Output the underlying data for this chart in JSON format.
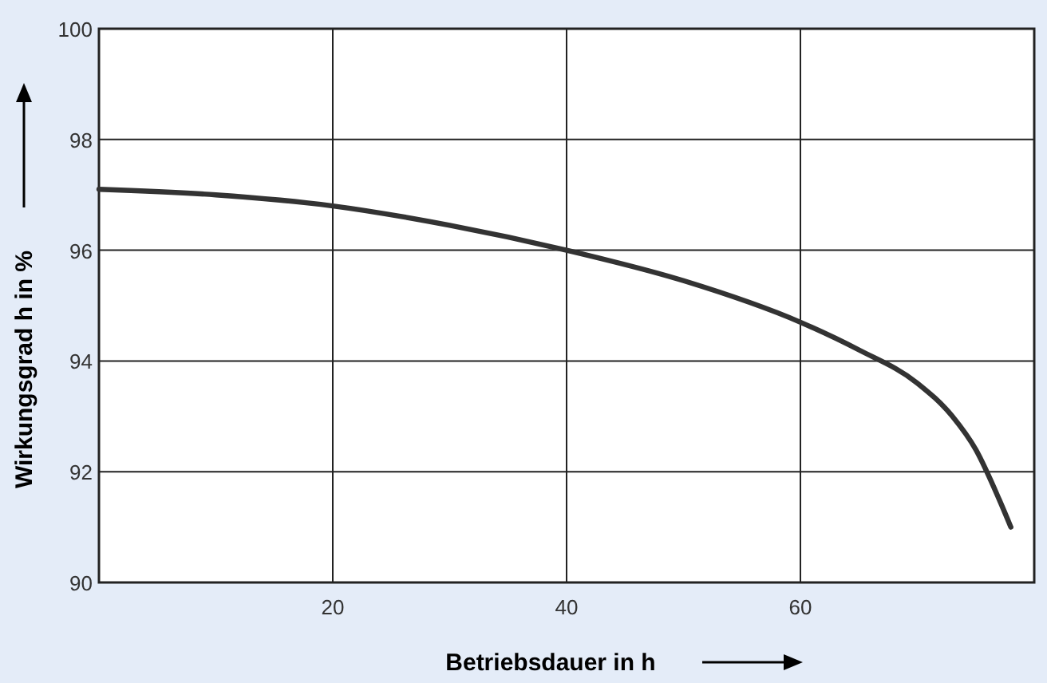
{
  "chart_data": {
    "type": "line",
    "xlabel": "Betriebsdauer in h",
    "ylabel": "Wirkungsgrad h in %",
    "x": [
      0,
      10,
      20,
      30,
      40,
      50,
      60,
      65,
      70,
      73,
      75,
      77,
      78
    ],
    "series": [
      {
        "color": "#333333",
        "values": [
          97.1,
          97.0,
          96.8,
          96.45,
          96.0,
          95.45,
          94.7,
          94.2,
          93.6,
          93.0,
          92.4,
          91.5,
          91.0
        ]
      }
    ],
    "xlim": [
      0,
      80
    ],
    "xticks": [
      20,
      40,
      60
    ],
    "ylim": [
      90,
      100
    ],
    "yticks": [
      90,
      92,
      94,
      96,
      98,
      100
    ],
    "grid": true,
    "marker": "none",
    "line_style": "solid"
  }
}
